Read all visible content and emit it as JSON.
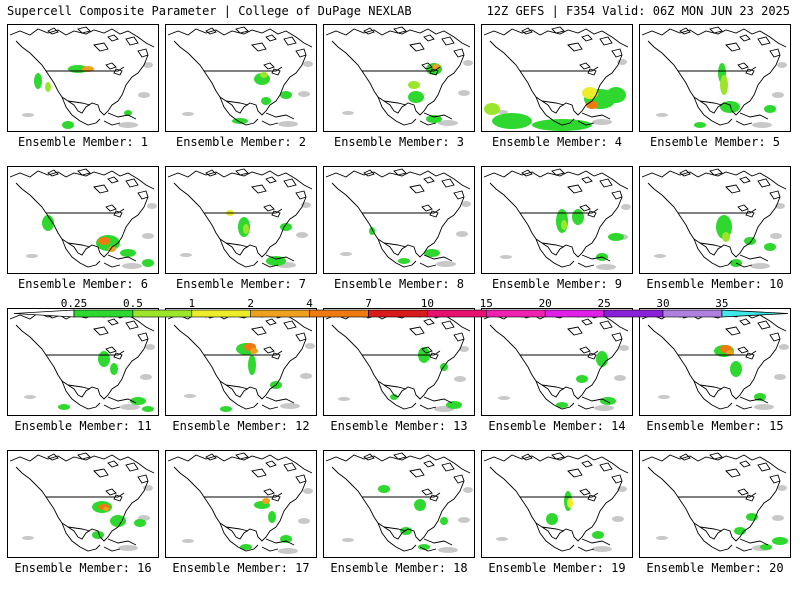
{
  "header": {
    "title_left": "Supercell Composite Parameter | College of DuPage NEXLAB",
    "title_right": "12Z GEFS | F354 Valid: 06Z MON JUN 23 2025"
  },
  "members": [
    {
      "label": "Ensemble Member: 1"
    },
    {
      "label": "Ensemble Member: 2"
    },
    {
      "label": "Ensemble Member: 3"
    },
    {
      "label": "Ensemble Member: 4"
    },
    {
      "label": "Ensemble Member: 5"
    },
    {
      "label": "Ensemble Member: 6"
    },
    {
      "label": "Ensemble Member: 7"
    },
    {
      "label": "Ensemble Member: 8"
    },
    {
      "label": "Ensemble Member: 9"
    },
    {
      "label": "Ensemble Member: 10"
    },
    {
      "label": "Ensemble Member: 11"
    },
    {
      "label": "Ensemble Member: 12"
    },
    {
      "label": "Ensemble Member: 13"
    },
    {
      "label": "Ensemble Member: 14"
    },
    {
      "label": "Ensemble Member: 15"
    },
    {
      "label": "Ensemble Member: 16"
    },
    {
      "label": "Ensemble Member: 17"
    },
    {
      "label": "Ensemble Member: 18"
    },
    {
      "label": "Ensemble Member: 19"
    },
    {
      "label": "Ensemble Member: 20"
    }
  ],
  "colorbar": {
    "labels": [
      "0.25",
      "0.5",
      "1",
      "2",
      "4",
      "7",
      "10",
      "15",
      "20",
      "25",
      "30",
      "35"
    ],
    "colors": [
      "#ffffff",
      "#2fd82f",
      "#9be62a",
      "#ecec2a",
      "#f0a020",
      "#ee7a10",
      "#d81a1a",
      "#e81070",
      "#f020b0",
      "#e020e8",
      "#8a20d8",
      "#b080e0",
      "#40e8e8"
    ]
  }
}
